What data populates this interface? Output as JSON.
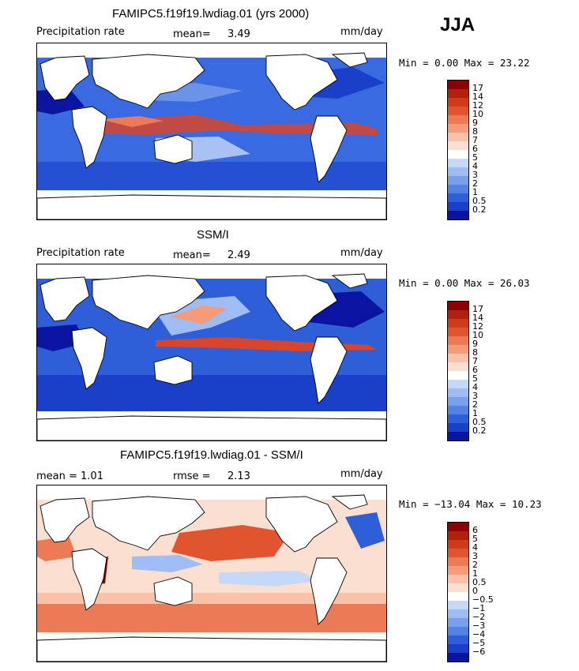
{
  "season": "JJA",
  "panels": [
    {
      "id": "model",
      "title": "FAMIPC5.f19f19.lwdiag.01 (yrs 2000)",
      "left_label": "Precipitation rate",
      "stat_label": "mean=",
      "stat_value": "3.49",
      "units": "mm/day",
      "minmax": "Min =    0.00 Max =   23.22",
      "scale": "precip"
    },
    {
      "id": "obs",
      "title": "SSM/I",
      "left_label": "Precipitation rate",
      "stat_label": "mean=",
      "stat_value": "2.49",
      "units": "mm/day",
      "minmax": "Min =    0.00 Max =   26.03",
      "scale": "precip"
    },
    {
      "id": "diff",
      "title": "FAMIPC5.f19f19.lwdiag.01 - SSM/I",
      "left_label": "mean =     1.01",
      "stat_label": "rmse =",
      "stat_value": "2.13",
      "units": "mm/day",
      "minmax": "Min = −13.04 Max =   10.23",
      "scale": "diff"
    }
  ],
  "precip_colorbar": {
    "labels": [
      "17",
      "14",
      "12",
      "10",
      "9",
      "8",
      "7",
      "6",
      "5",
      "4",
      "3",
      "2",
      "1",
      "0.5",
      "0.2"
    ],
    "colors": [
      "#8b0000",
      "#b2200e",
      "#cf3a1c",
      "#e0552e",
      "#ed7a56",
      "#f59b7a",
      "#fbc2a8",
      "#fbe0d2",
      "#ffffff",
      "#c6d8f7",
      "#9fbdf2",
      "#7aa0ec",
      "#5482e4",
      "#2e5fd8",
      "#1a3fc8",
      "#0a14a0"
    ]
  },
  "diff_colorbar": {
    "labels": [
      "6",
      "5",
      "4",
      "3",
      "2",
      "1",
      "0.5",
      "0",
      "−0.5",
      "−1",
      "−2",
      "−3",
      "−4",
      "−5",
      "−6"
    ],
    "colors": [
      "#8b0000",
      "#b2200e",
      "#cf3a1c",
      "#e0552e",
      "#ed7a56",
      "#f59b7a",
      "#fbc2a8",
      "#fbe0d2",
      "#ffffff",
      "#c6d8f7",
      "#9fbdf2",
      "#7aa0ec",
      "#5482e4",
      "#2e5fd8",
      "#1a3fc8",
      "#0a14a0"
    ]
  }
}
